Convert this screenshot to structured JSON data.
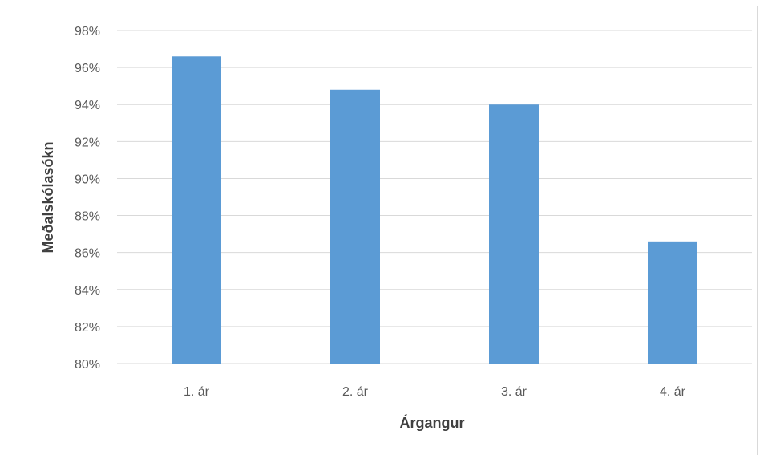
{
  "chart_data": {
    "type": "bar",
    "title": "",
    "xlabel": "Árgangur",
    "ylabel": "Meðalskólasókn",
    "categories": [
      "1. ár",
      "2. ár",
      "3. ár",
      "4. ár"
    ],
    "values": [
      96.6,
      94.8,
      94.0,
      86.6
    ],
    "ylim": [
      80,
      98
    ],
    "ytick_step": 2,
    "ytick_labels": [
      "80%",
      "82%",
      "84%",
      "86%",
      "88%",
      "90%",
      "92%",
      "94%",
      "96%",
      "98%"
    ],
    "grid": true,
    "legend": "none",
    "colors": {
      "bar": "#5b9bd5",
      "grid": "#d9d9d9",
      "tick_text": "#595959",
      "axis_title": "#404040"
    }
  }
}
